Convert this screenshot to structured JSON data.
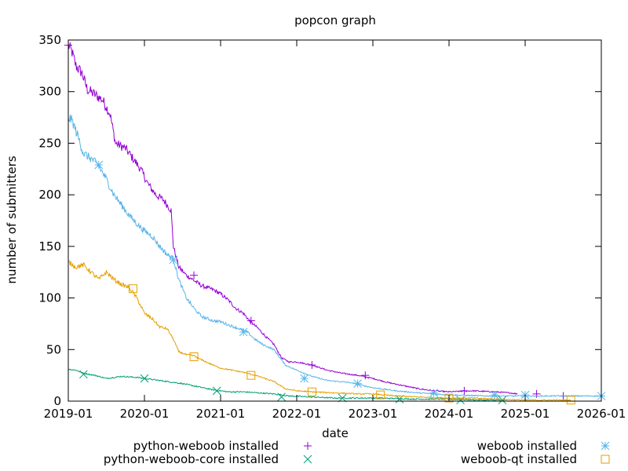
{
  "chart_data": {
    "type": "line",
    "title": "popcon graph",
    "xlabel": "date",
    "ylabel": "number of submitters",
    "ylim": [
      0,
      350
    ],
    "xlim": [
      2019.0,
      2026.0
    ],
    "x_ticks": [
      {
        "value": 2019.0,
        "label": "2019-01"
      },
      {
        "value": 2020.0,
        "label": "2020-01"
      },
      {
        "value": 2021.0,
        "label": "2021-01"
      },
      {
        "value": 2022.0,
        "label": "2022-01"
      },
      {
        "value": 2023.0,
        "label": "2023-01"
      },
      {
        "value": 2024.0,
        "label": "2024-01"
      },
      {
        "value": 2025.0,
        "label": "2025-01"
      },
      {
        "value": 2026.0,
        "label": "2026-01"
      }
    ],
    "y_ticks": [
      0,
      50,
      100,
      150,
      200,
      250,
      300,
      350
    ],
    "grid": false,
    "legend_position": "bottom",
    "series": [
      {
        "name": "python-weboob installed",
        "color": "#9400d3",
        "marker": "plus",
        "points": [
          [
            2019.0,
            345
          ],
          [
            2019.05,
            338
          ],
          [
            2019.1,
            325
          ],
          [
            2019.18,
            318
          ],
          [
            2019.25,
            302
          ],
          [
            2019.35,
            297
          ],
          [
            2019.45,
            292
          ],
          [
            2019.55,
            278
          ],
          [
            2019.62,
            250
          ],
          [
            2019.75,
            245
          ],
          [
            2019.85,
            235
          ],
          [
            2019.95,
            225
          ],
          [
            2020.05,
            210
          ],
          [
            2020.15,
            200
          ],
          [
            2020.25,
            195
          ],
          [
            2020.35,
            185
          ],
          [
            2020.38,
            150
          ],
          [
            2020.45,
            130
          ],
          [
            2020.55,
            122
          ],
          [
            2020.65,
            117
          ],
          [
            2020.75,
            112
          ],
          [
            2020.9,
            108
          ],
          [
            2021.0,
            104
          ],
          [
            2021.1,
            98
          ],
          [
            2021.2,
            90
          ],
          [
            2021.3,
            85
          ],
          [
            2021.38,
            78
          ],
          [
            2021.5,
            70
          ],
          [
            2021.6,
            62
          ],
          [
            2021.7,
            55
          ],
          [
            2021.8,
            42
          ],
          [
            2021.9,
            38
          ],
          [
            2022.0,
            38
          ],
          [
            2022.2,
            35
          ],
          [
            2022.4,
            30
          ],
          [
            2022.6,
            27
          ],
          [
            2022.8,
            25
          ],
          [
            2023.0,
            22
          ],
          [
            2023.2,
            18
          ],
          [
            2023.4,
            15
          ],
          [
            2023.6,
            12
          ],
          [
            2023.8,
            10
          ],
          [
            2024.0,
            9
          ],
          [
            2024.3,
            10
          ],
          [
            2024.6,
            9
          ],
          [
            2024.8,
            8
          ],
          [
            2024.9,
            7
          ]
        ],
        "marker_points": [
          [
            2019.0,
            345
          ],
          [
            2020.65,
            122
          ],
          [
            2021.4,
            78
          ],
          [
            2022.2,
            35
          ],
          [
            2022.9,
            25
          ],
          [
            2024.2,
            10
          ],
          [
            2025.15,
            7
          ],
          [
            2025.5,
            5
          ]
        ]
      },
      {
        "name": "python-weboob-core installed",
        "color": "#009e73",
        "marker": "cross",
        "points": [
          [
            2019.0,
            31
          ],
          [
            2019.1,
            30
          ],
          [
            2019.2,
            27
          ],
          [
            2019.35,
            25
          ],
          [
            2019.5,
            22
          ],
          [
            2019.7,
            24
          ],
          [
            2019.9,
            23
          ],
          [
            2020.1,
            21
          ],
          [
            2020.3,
            19
          ],
          [
            2020.5,
            17
          ],
          [
            2020.7,
            14
          ],
          [
            2020.9,
            11
          ],
          [
            2021.1,
            9
          ],
          [
            2021.3,
            9
          ],
          [
            2021.5,
            8
          ],
          [
            2021.7,
            7
          ],
          [
            2021.9,
            5
          ],
          [
            2022.2,
            4
          ],
          [
            2022.5,
            3
          ],
          [
            2022.8,
            3
          ],
          [
            2023.1,
            3
          ],
          [
            2023.5,
            2
          ],
          [
            2024.0,
            2
          ],
          [
            2024.5,
            1
          ],
          [
            2024.75,
            1
          ]
        ],
        "marker_points": [
          [
            2019.2,
            26
          ],
          [
            2020.0,
            22
          ],
          [
            2020.95,
            10
          ],
          [
            2021.8,
            4
          ],
          [
            2022.6,
            3
          ],
          [
            2023.35,
            2
          ],
          [
            2024.15,
            1
          ],
          [
            2024.7,
            1
          ]
        ]
      },
      {
        "name": "weboob installed",
        "color": "#56b4e9",
        "marker": "star",
        "points": [
          [
            2019.0,
            275
          ],
          [
            2019.05,
            272
          ],
          [
            2019.12,
            258
          ],
          [
            2019.2,
            240
          ],
          [
            2019.3,
            235
          ],
          [
            2019.4,
            228
          ],
          [
            2019.5,
            215
          ],
          [
            2019.6,
            200
          ],
          [
            2019.7,
            190
          ],
          [
            2019.8,
            180
          ],
          [
            2019.9,
            172
          ],
          [
            2020.0,
            165
          ],
          [
            2020.1,
            160
          ],
          [
            2020.2,
            150
          ],
          [
            2020.3,
            142
          ],
          [
            2020.38,
            138
          ],
          [
            2020.45,
            118
          ],
          [
            2020.55,
            100
          ],
          [
            2020.65,
            90
          ],
          [
            2020.75,
            82
          ],
          [
            2020.9,
            78
          ],
          [
            2021.0,
            77
          ],
          [
            2021.1,
            74
          ],
          [
            2021.25,
            70
          ],
          [
            2021.35,
            67
          ],
          [
            2021.45,
            60
          ],
          [
            2021.55,
            55
          ],
          [
            2021.7,
            50
          ],
          [
            2021.85,
            35
          ],
          [
            2022.0,
            30
          ],
          [
            2022.2,
            24
          ],
          [
            2022.4,
            20
          ],
          [
            2022.7,
            18
          ],
          [
            2023.0,
            13
          ],
          [
            2023.3,
            10
          ],
          [
            2023.6,
            8
          ],
          [
            2024.0,
            6
          ],
          [
            2024.5,
            5
          ],
          [
            2025.0,
            5
          ],
          [
            2025.5,
            5
          ],
          [
            2026.0,
            5
          ]
        ],
        "marker_points": [
          [
            2019.4,
            229
          ],
          [
            2020.38,
            137
          ],
          [
            2021.3,
            67
          ],
          [
            2022.1,
            22
          ],
          [
            2022.8,
            17
          ],
          [
            2023.8,
            8
          ],
          [
            2024.6,
            6
          ],
          [
            2025.0,
            6
          ],
          [
            2026.0,
            5
          ]
        ]
      },
      {
        "name": "weboob-qt installed",
        "color": "#e69f00",
        "marker": "box",
        "points": [
          [
            2019.0,
            135
          ],
          [
            2019.1,
            130
          ],
          [
            2019.2,
            132
          ],
          [
            2019.3,
            125
          ],
          [
            2019.4,
            118
          ],
          [
            2019.5,
            125
          ],
          [
            2019.6,
            118
          ],
          [
            2019.7,
            113
          ],
          [
            2019.8,
            110
          ],
          [
            2019.9,
            100
          ],
          [
            2020.0,
            85
          ],
          [
            2020.1,
            80
          ],
          [
            2020.2,
            72
          ],
          [
            2020.3,
            70
          ],
          [
            2020.38,
            60
          ],
          [
            2020.45,
            48
          ],
          [
            2020.55,
            45
          ],
          [
            2020.65,
            44
          ],
          [
            2020.75,
            40
          ],
          [
            2020.9,
            35
          ],
          [
            2021.0,
            32
          ],
          [
            2021.15,
            30
          ],
          [
            2021.3,
            28
          ],
          [
            2021.5,
            24
          ],
          [
            2021.7,
            19
          ],
          [
            2021.85,
            12
          ],
          [
            2022.0,
            10
          ],
          [
            2022.2,
            9
          ],
          [
            2022.5,
            8
          ],
          [
            2022.8,
            7
          ],
          [
            2023.0,
            7
          ],
          [
            2023.3,
            5
          ],
          [
            2023.6,
            4
          ],
          [
            2024.0,
            3
          ],
          [
            2024.3,
            3
          ],
          [
            2024.6,
            2
          ],
          [
            2025.0,
            1
          ],
          [
            2025.3,
            1
          ],
          [
            2025.6,
            1
          ]
        ],
        "marker_points": [
          [
            2019.85,
            109
          ],
          [
            2020.65,
            43
          ],
          [
            2021.4,
            25
          ],
          [
            2022.2,
            9
          ],
          [
            2023.1,
            6
          ],
          [
            2024.0,
            3
          ],
          [
            2025.6,
            1
          ]
        ]
      }
    ]
  }
}
